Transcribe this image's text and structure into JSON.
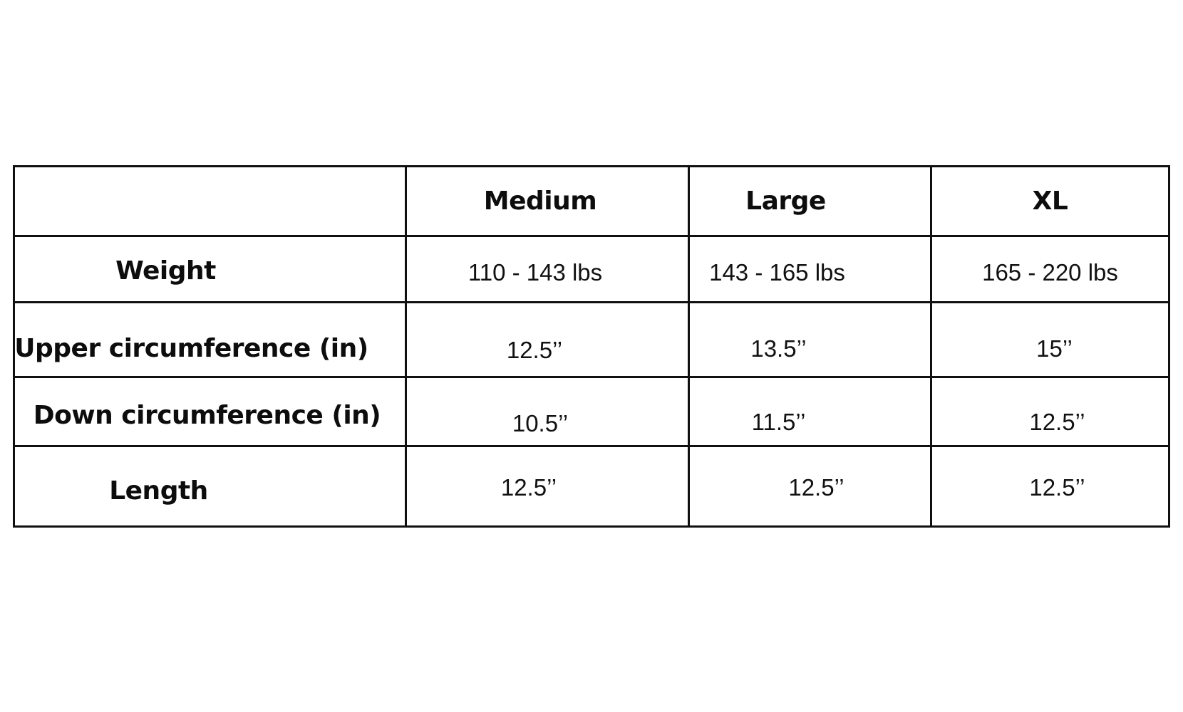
{
  "colors": {
    "background": "#ffffff",
    "border": "#101010",
    "text": "#111111"
  },
  "size_chart": {
    "columns": [
      "",
      "Medium",
      "Large",
      "XL"
    ],
    "rows": [
      {
        "label": "Weight",
        "values": [
          "110 - 143 lbs",
          "143 - 165 lbs",
          "165 - 220 lbs"
        ]
      },
      {
        "label": "Upper circumference (in)",
        "values": [
          "12.5’’",
          "13.5’’",
          "15’’"
        ]
      },
      {
        "label": "Down circumference (in)",
        "values": [
          "10.5’’",
          "11.5’’",
          "12.5’’"
        ]
      },
      {
        "label": "Length",
        "values": [
          "12.5’’",
          "12.5’’",
          "12.5’’"
        ]
      }
    ]
  }
}
